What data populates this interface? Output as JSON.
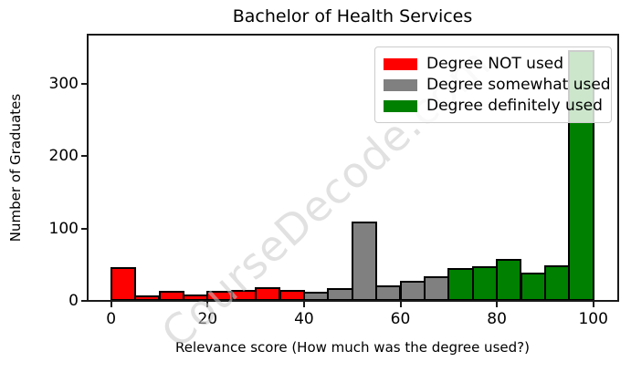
{
  "title": "Bachelor of Health Services",
  "watermark": "CourseDecode.com",
  "legend": [
    {
      "label": "Degree NOT used",
      "color": "#ff0000"
    },
    {
      "label": "Degree somewhat used",
      "color": "#808080"
    },
    {
      "label": "Degree definitely used",
      "color": "#008000"
    }
  ],
  "chart_data": {
    "type": "bar",
    "subtype": "histogram",
    "title": "Bachelor of Health Services",
    "xlabel": "Relevance score (How much was the degree used?)",
    "ylabel": "Number of Graduates",
    "xlim": [
      -5,
      105
    ],
    "ylim": [
      0,
      367
    ],
    "x_ticks": [
      0,
      20,
      40,
      60,
      80,
      100
    ],
    "y_ticks": [
      0,
      100,
      200,
      300
    ],
    "bin_width": 5,
    "grid": false,
    "legend_position": "upper right",
    "bar_edge_color": "#000000",
    "series": [
      {
        "name": "Degree NOT used",
        "color": "#ff0000",
        "bins": [
          [
            0,
            45
          ],
          [
            5,
            6
          ],
          [
            10,
            12
          ],
          [
            15,
            8
          ],
          [
            20,
            12
          ],
          [
            25,
            14
          ],
          [
            30,
            17
          ],
          [
            35,
            14
          ]
        ]
      },
      {
        "name": "Degree somewhat used",
        "color": "#808080",
        "bins": [
          [
            40,
            11
          ],
          [
            45,
            16
          ],
          [
            50,
            108
          ],
          [
            55,
            20
          ],
          [
            60,
            27
          ],
          [
            65,
            33
          ]
        ]
      },
      {
        "name": "Degree definitely used",
        "color": "#008000",
        "bins": [
          [
            70,
            44
          ],
          [
            75,
            47
          ],
          [
            80,
            57
          ],
          [
            85,
            38
          ],
          [
            90,
            48
          ],
          [
            95,
            345
          ]
        ]
      }
    ]
  }
}
